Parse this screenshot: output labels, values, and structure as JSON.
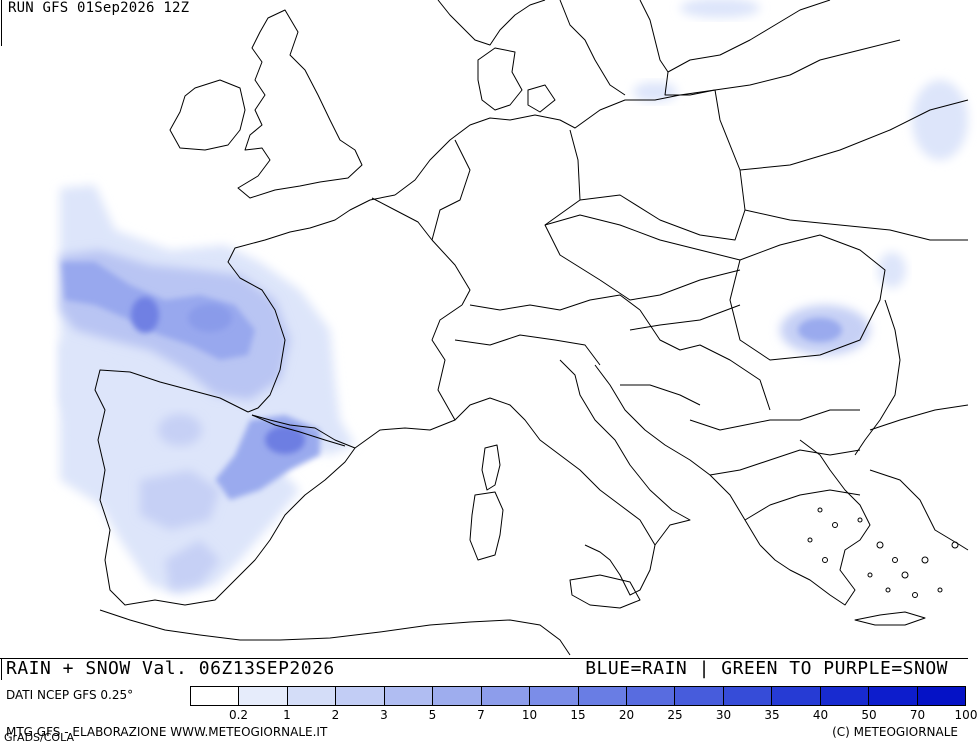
{
  "header": {
    "run_label": "RUN GFS 01Sep2026 12Z"
  },
  "footer": {
    "title": "RAIN + SNOW Val. 06Z13SEP2026",
    "legend_note": "BLUE=RAIN | GREEN TO PURPLE=SNOW",
    "data_source": "DATI NCEP GFS 0.25°",
    "credit_left": "MTG GFS - ELABORAZIONE WWW.METEOGIORNALE.IT",
    "credit_grads": "GrADS/COLA",
    "credit_right": "(C) METEOGIORNALE"
  },
  "colorbar": {
    "colors": [
      "#ffffff",
      "#e6ecfb",
      "#d4ddf8",
      "#c2cdf5",
      "#b0bdf2",
      "#9eadee",
      "#8d9deb",
      "#7b8de8",
      "#697de4",
      "#586ce0",
      "#475cdc",
      "#364cd8",
      "#263bd4",
      "#182bd0",
      "#0d1dcc",
      "#0512c6"
    ],
    "labels": [
      "0.2",
      "1",
      "2",
      "3",
      "5",
      "7",
      "10",
      "15",
      "20",
      "25",
      "30",
      "35",
      "40",
      "50",
      "70",
      "100"
    ]
  }
}
